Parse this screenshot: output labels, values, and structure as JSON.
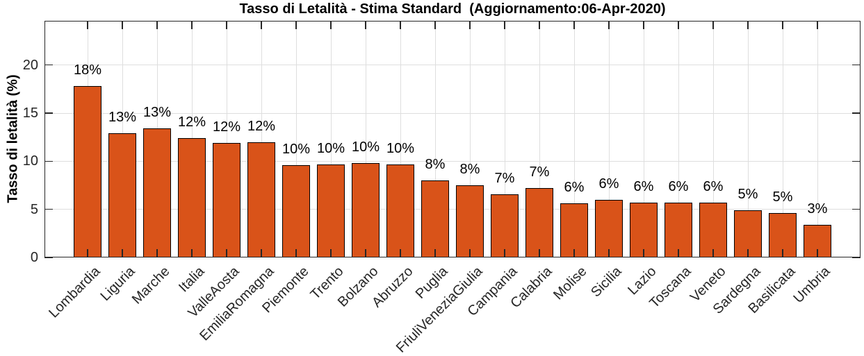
{
  "chart_data": {
    "type": "bar",
    "title": "Tasso di Letalità - Stima Standard  (Aggiornamento:06-Apr-2020)",
    "ylabel": "Tasso di letalità (%)",
    "xlabel": "",
    "categories": [
      "Lombardia",
      "Liguria",
      "Marche",
      "Italia",
      "ValleAosta",
      "EmiliaRomagna",
      "Piemonte",
      "Trento",
      "Bolzano",
      "Abruzzo",
      "Puglia",
      "FriuliVeneziaGiulia",
      "Campania",
      "Calabria",
      "Molise",
      "Sicilia",
      "Lazio",
      "Toscana",
      "Veneto",
      "Sardegna",
      "Basilicata",
      "Umbria"
    ],
    "values": [
      17.8,
      12.9,
      13.4,
      12.4,
      11.9,
      12.0,
      9.6,
      9.7,
      9.8,
      9.7,
      8.0,
      7.5,
      6.6,
      7.2,
      5.6,
      6.0,
      5.7,
      5.7,
      5.7,
      4.9,
      4.6,
      3.4
    ],
    "bar_labels": [
      "18%",
      "13%",
      "13%",
      "12%",
      "12%",
      "12%",
      "10%",
      "10%",
      "10%",
      "10%",
      "8%",
      "8%",
      "7%",
      "7%",
      "6%",
      "6%",
      "6%",
      "6%",
      "6%",
      "5%",
      "5%",
      "3%"
    ],
    "y_ticks": [
      0,
      5,
      10,
      15,
      20
    ],
    "y_tick_labels": [
      "0",
      "5",
      "10",
      "15",
      "20"
    ],
    "ylim": [
      0,
      24.6
    ],
    "grid": true,
    "x_tick_rotation_deg": 45,
    "legend": null,
    "colors": {
      "bar_fill": "#D95319",
      "bar_edge": "#000000",
      "grid": "#DEDEDE",
      "axis": "#262626",
      "tick_label": "#262626",
      "value_label": "#000000",
      "title": "#000000",
      "background": "#FFFFFF"
    }
  }
}
